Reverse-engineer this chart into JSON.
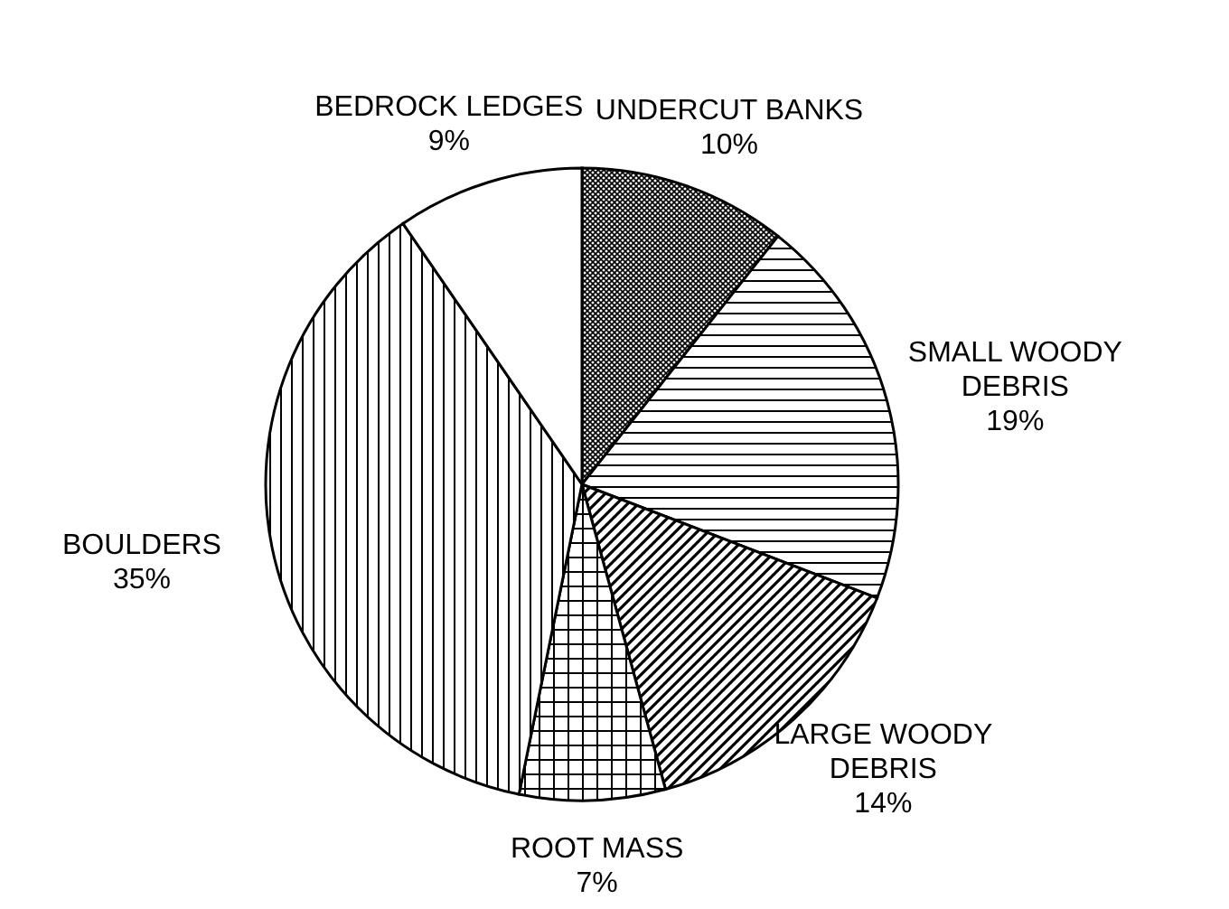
{
  "chart_data": {
    "type": "pie",
    "categories": [
      "UNDERCUT BANKS",
      "SMALL WOODY DEBRIS",
      "LARGE WOODY DEBRIS",
      "ROOT MASS",
      "BOULDERS",
      "BEDROCK LEDGES"
    ],
    "values": [
      10,
      19,
      14,
      7,
      35,
      9
    ],
    "value_labels": [
      "10%",
      "19%",
      "14%",
      "7%",
      "35%",
      "9%"
    ],
    "colors": [
      "#000000",
      "#000000",
      "#000000",
      "#000000",
      "#000000",
      "#ffffff"
    ]
  }
}
